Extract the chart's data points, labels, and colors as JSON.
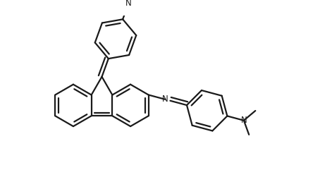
{
  "bg_color": "#ffffff",
  "line_color": "#1a1a1a",
  "line_width": 1.6,
  "figsize": [
    4.54,
    2.58
  ],
  "dpi": 100,
  "xlim": [
    0,
    10
  ],
  "ylim": [
    0,
    5.7
  ]
}
